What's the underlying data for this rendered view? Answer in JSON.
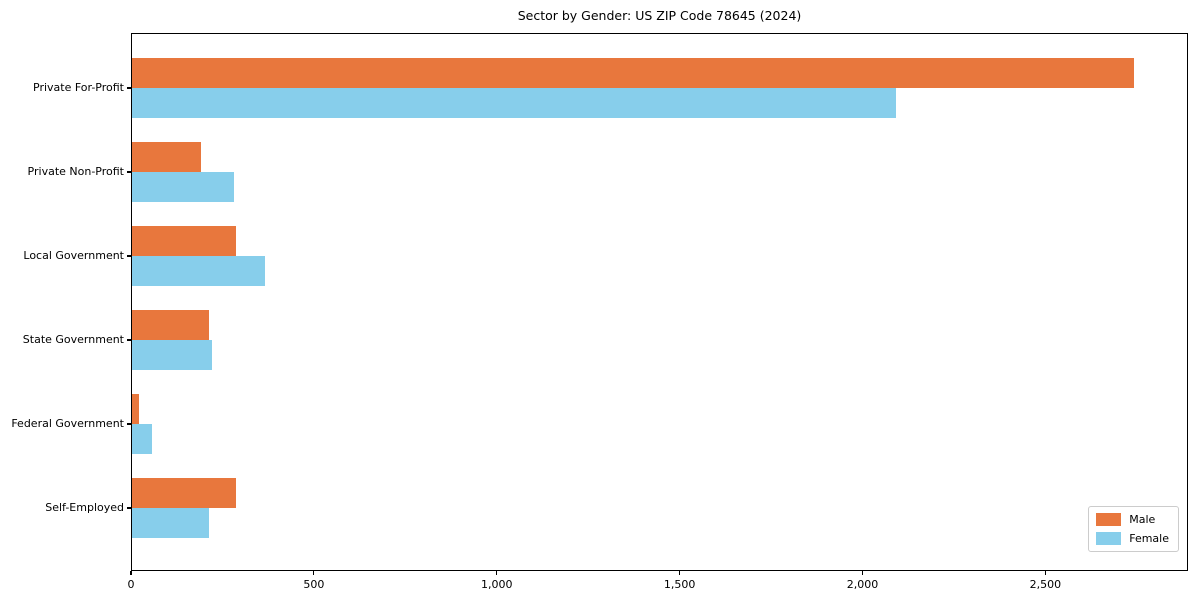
{
  "title": "Sector by Gender: US ZIP Code 78645 (2024)",
  "chart_data": {
    "type": "bar",
    "orientation": "horizontal",
    "title": "Sector by Gender: US ZIP Code 78645 (2024)",
    "xlabel": "",
    "ylabel": "",
    "categories": [
      "Private For-Profit",
      "Private Non-Profit",
      "Local Government",
      "State Government",
      "Federal Government",
      "Self-Employed"
    ],
    "series": [
      {
        "name": "Male",
        "color": "#e8773d",
        "values": [
          2740,
          190,
          285,
          210,
          20,
          285
        ]
      },
      {
        "name": "Female",
        "color": "#87ceeb",
        "values": [
          2090,
          280,
          365,
          220,
          55,
          210
        ]
      }
    ],
    "xlim": [
      0,
      2890
    ],
    "x_ticks": [
      0,
      500,
      1000,
      1500,
      2000,
      2500
    ],
    "x_tick_labels": [
      "0",
      "500",
      "1,000",
      "1,500",
      "2,000",
      "2,500"
    ],
    "grid": false,
    "legend": {
      "position": "lower right",
      "entries": [
        "Male",
        "Female"
      ]
    },
    "colors": {
      "spine": "#000000",
      "background": "#ffffff",
      "male": "#e8773d",
      "female": "#87ceeb"
    }
  }
}
